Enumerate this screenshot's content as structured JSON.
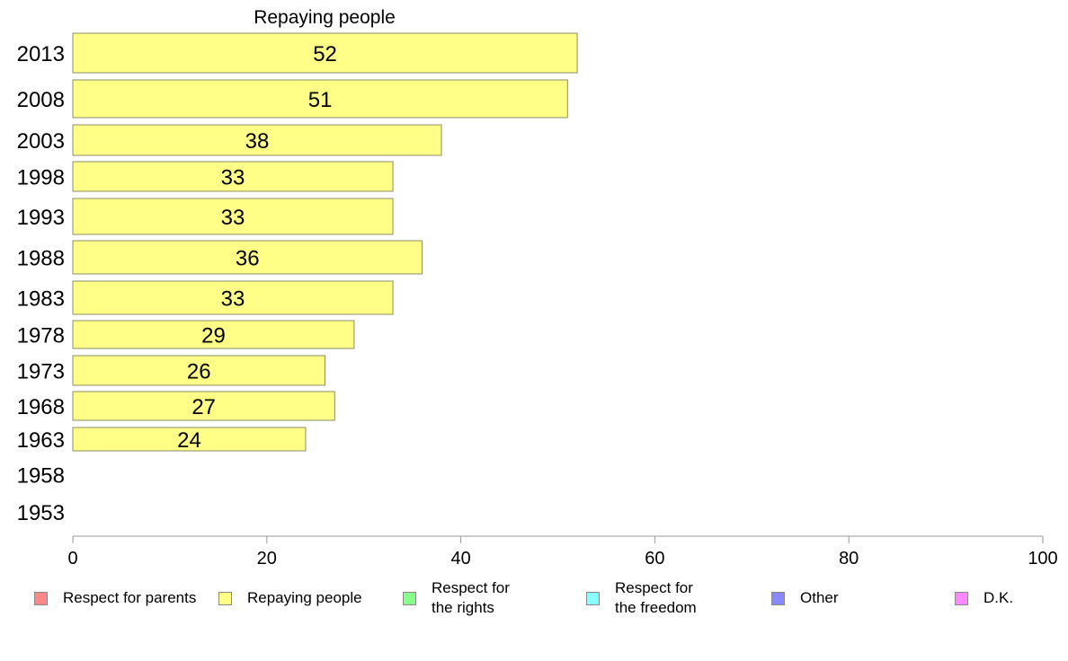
{
  "chart_data": {
    "type": "bar",
    "orientation": "horizontal",
    "title": "Repaying people",
    "categories": [
      "2013",
      "2008",
      "2003",
      "1998",
      "1993",
      "1988",
      "1983",
      "1978",
      "1973",
      "1968",
      "1963",
      "1958",
      "1953"
    ],
    "series": [
      {
        "name": "Repaying people",
        "color": "#ffff88",
        "values": [
          52,
          51,
          38,
          33,
          33,
          36,
          33,
          29,
          26,
          27,
          24,
          null,
          null
        ],
        "labels": [
          "52",
          "51",
          "38",
          "33",
          "33",
          "36",
          "33",
          "29",
          "26",
          "27",
          "24",
          "",
          ""
        ]
      }
    ],
    "xlim": [
      0,
      100
    ],
    "xticks": [
      "0",
      "20",
      "40",
      "60",
      "80",
      "100"
    ],
    "grid": false,
    "legend_position": "bottom",
    "legend": [
      {
        "label": "Respect for parents",
        "color": "#ff8888"
      },
      {
        "label": "Repaying people",
        "color": "#ffff88"
      },
      {
        "label": "Respect for\nthe rights",
        "color": "#88ff88"
      },
      {
        "label": "Respect for\nthe freedom",
        "color": "#88ffff"
      },
      {
        "label": "Other",
        "color": "#8888ff"
      },
      {
        "label": "D.K.",
        "color": "#ff88ff"
      }
    ]
  }
}
